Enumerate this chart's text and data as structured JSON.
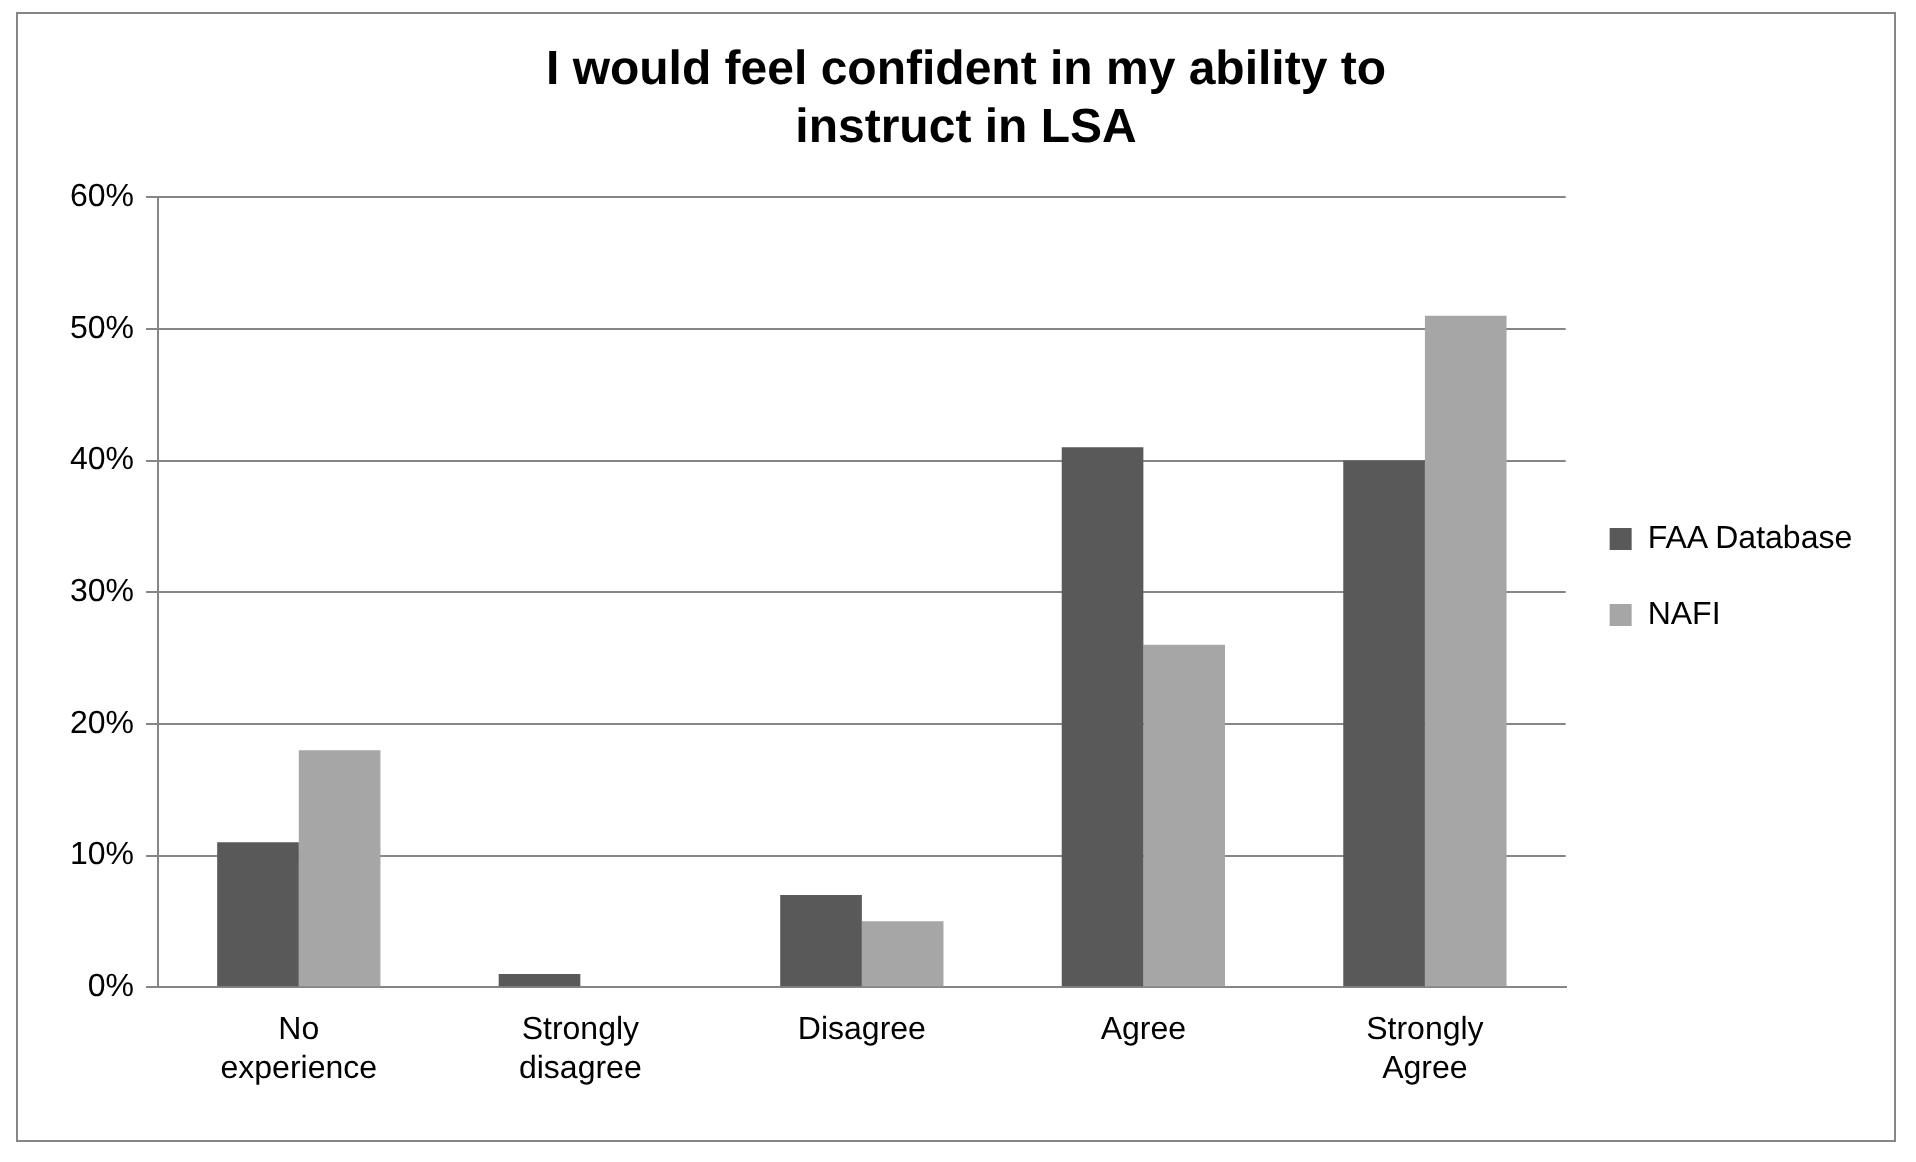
{
  "chart_data": {
    "type": "bar",
    "title": "I would feel confident in my ability to instruct in LSA",
    "categories": [
      "No experience",
      "Strongly disagree",
      "Disagree",
      "Agree",
      "Strongly Agree"
    ],
    "series": [
      {
        "name": "FAA Database",
        "color": "#595959",
        "values": [
          11,
          1,
          7,
          41,
          40
        ]
      },
      {
        "name": "NAFI",
        "color": "#a6a6a6",
        "values": [
          18,
          0,
          5,
          26,
          51
        ]
      }
    ],
    "ylim": [
      0,
      60
    ],
    "yticks": [
      {
        "value": 0,
        "label": "0%"
      },
      {
        "value": 10,
        "label": "10%"
      },
      {
        "value": 20,
        "label": "20%"
      },
      {
        "value": 30,
        "label": "30%"
      },
      {
        "value": 40,
        "label": "40%"
      },
      {
        "value": 50,
        "label": "50%"
      },
      {
        "value": 60,
        "label": "60%"
      }
    ],
    "grid": "y",
    "legend": "right"
  }
}
